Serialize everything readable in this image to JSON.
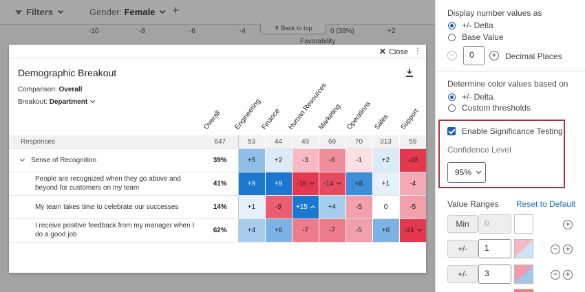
{
  "background": {
    "filters_label": "Filters",
    "gender_label": "Gender:",
    "gender_value": "Female",
    "add_label": "+",
    "axis_ticks": [
      "-10",
      "-8",
      "-6",
      "-4",
      "0 (39%)",
      "+2"
    ],
    "back_to_top": "Back to top",
    "favorability": "Favorability"
  },
  "modal": {
    "close_label": "Close",
    "more_label": "⋮",
    "title": "Demographic Breakout",
    "comparison_label": "Comparison:",
    "comparison_value": "Overall",
    "breakout_label": "Breakout:",
    "breakout_value": "Department",
    "columns": [
      "Overall",
      "Engineering",
      "Finance",
      "Human Resources",
      "Marketing",
      "Operations",
      "Sales",
      "Support"
    ],
    "responses": {
      "label": "Responses",
      "overall": "647",
      "values": [
        "53",
        "44",
        "49",
        "69",
        "70",
        "313",
        "59"
      ]
    },
    "rows": [
      {
        "label": "Sense of Recognition",
        "overall": "39%",
        "group": true,
        "cells": [
          {
            "v": "+5",
            "c": "#8fbfe8",
            "dark": false,
            "mark": ""
          },
          {
            "v": "+2",
            "c": "#dcebf8",
            "dark": false,
            "mark": ""
          },
          {
            "v": "-3",
            "c": "#f7b9c3",
            "dark": false,
            "mark": ""
          },
          {
            "v": "-6",
            "c": "#f08d9d",
            "dark": false,
            "mark": ""
          },
          {
            "v": "-1",
            "c": "#fbe0e4",
            "dark": false,
            "mark": ""
          },
          {
            "v": "+2",
            "c": "#dcebf8",
            "dark": false,
            "mark": ""
          },
          {
            "v": "-10",
            "c": "#e5384f",
            "dark": false,
            "mark": ""
          }
        ]
      },
      {
        "label": "People are recognized when they go above and beyond for customers on my team",
        "overall": "41%",
        "group": false,
        "cells": [
          {
            "v": "+9",
            "c": "#1a78d0",
            "dark": true,
            "mark": ""
          },
          {
            "v": "+9",
            "c": "#1a78d0",
            "dark": true,
            "mark": ""
          },
          {
            "v": "-16",
            "c": "#e5384f",
            "dark": false,
            "mark": "down"
          },
          {
            "v": "-14",
            "c": "#e84b60",
            "dark": false,
            "mark": "down"
          },
          {
            "v": "+8",
            "c": "#3d8fda",
            "dark": false,
            "mark": ""
          },
          {
            "v": "+1",
            "c": "#e6f0fa",
            "dark": false,
            "mark": ""
          },
          {
            "v": "-4",
            "c": "#f5a9b5",
            "dark": false,
            "mark": ""
          }
        ]
      },
      {
        "label": "My team takes time to celebrate our successes",
        "overall": "14%",
        "group": false,
        "cells": [
          {
            "v": "+1",
            "c": "#e6f0fa",
            "dark": false,
            "mark": ""
          },
          {
            "v": "-9",
            "c": "#eb5d70",
            "dark": false,
            "mark": ""
          },
          {
            "v": "+15",
            "c": "#1a78d0",
            "dark": true,
            "mark": "up"
          },
          {
            "v": "+4",
            "c": "#a7cdee",
            "dark": false,
            "mark": ""
          },
          {
            "v": "-5",
            "c": "#f3a0ad",
            "dark": false,
            "mark": ""
          },
          {
            "v": "0",
            "c": "#ffffff",
            "dark": false,
            "mark": ""
          },
          {
            "v": "-5",
            "c": "#f3a0ad",
            "dark": false,
            "mark": ""
          }
        ]
      },
      {
        "label": "I receive positive feedback from my manager when I do a good job",
        "overall": "62%",
        "group": false,
        "cells": [
          {
            "v": "+4",
            "c": "#a7cdee",
            "dark": false,
            "mark": ""
          },
          {
            "v": "+6",
            "c": "#7ab3e4",
            "dark": false,
            "mark": ""
          },
          {
            "v": "-7",
            "c": "#ee7b8c",
            "dark": false,
            "mark": ""
          },
          {
            "v": "-7",
            "c": "#ee7b8c",
            "dark": false,
            "mark": ""
          },
          {
            "v": "-5",
            "c": "#f3a0ad",
            "dark": false,
            "mark": ""
          },
          {
            "v": "+6",
            "c": "#7ab3e4",
            "dark": false,
            "mark": ""
          },
          {
            "v": "-21",
            "c": "#e5384f",
            "dark": false,
            "mark": "down"
          }
        ]
      }
    ]
  },
  "panel": {
    "display_title": "Display number values as",
    "display_opt1": "+/- Delta",
    "display_opt2": "Base Value",
    "decimal_value": "0",
    "decimal_label": "Decimal Places",
    "color_title": "Determine color values based on",
    "color_opt1": "+/- Delta",
    "color_opt2": "Custom thresholds",
    "sig_label": "Enable Significance Testing",
    "confidence_label": "Confidence Level",
    "confidence_value": "95%",
    "ranges_title": "Value Ranges",
    "reset_label": "Reset to Default",
    "min_label": "Min",
    "min_value": "0",
    "range1_label": "+/-",
    "range1_value": "1",
    "range2_label": "+/-",
    "range2_value": "3"
  }
}
